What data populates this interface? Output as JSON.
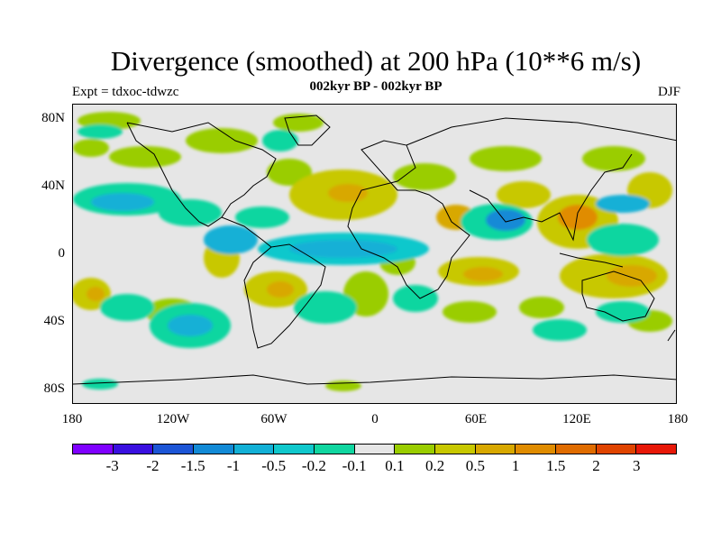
{
  "title": "Divergence (smoothed) at 200 hPa (10**6 m/s)",
  "subtitle": "002kyr BP - 002kyr BP",
  "experiment": "Expt = tdxoc-tdwzc",
  "season": "DJF",
  "latitude_labels": [
    "80N",
    "40N",
    "0",
    "40S",
    "80S"
  ],
  "longitude_labels": [
    "180",
    "120W",
    "60W",
    "0",
    "60E",
    "120E",
    "180"
  ],
  "colorbar": {
    "colors": [
      "#7f00ff",
      "#3a10e0",
      "#1c55d6",
      "#128ad6",
      "#12b0d6",
      "#10c8cc",
      "#10d6a0",
      "#e6e6e6",
      "#9acd00",
      "#c8c800",
      "#d8a800",
      "#e08c00",
      "#e06c00",
      "#e04400",
      "#e81808"
    ],
    "labels": [
      "-3",
      "-2",
      "-1.5",
      "-1",
      "-0.5",
      "-0.2",
      "-0.1",
      "0.1",
      "0.2",
      "0.5",
      "1",
      "1.5",
      "2",
      "3"
    ]
  }
}
